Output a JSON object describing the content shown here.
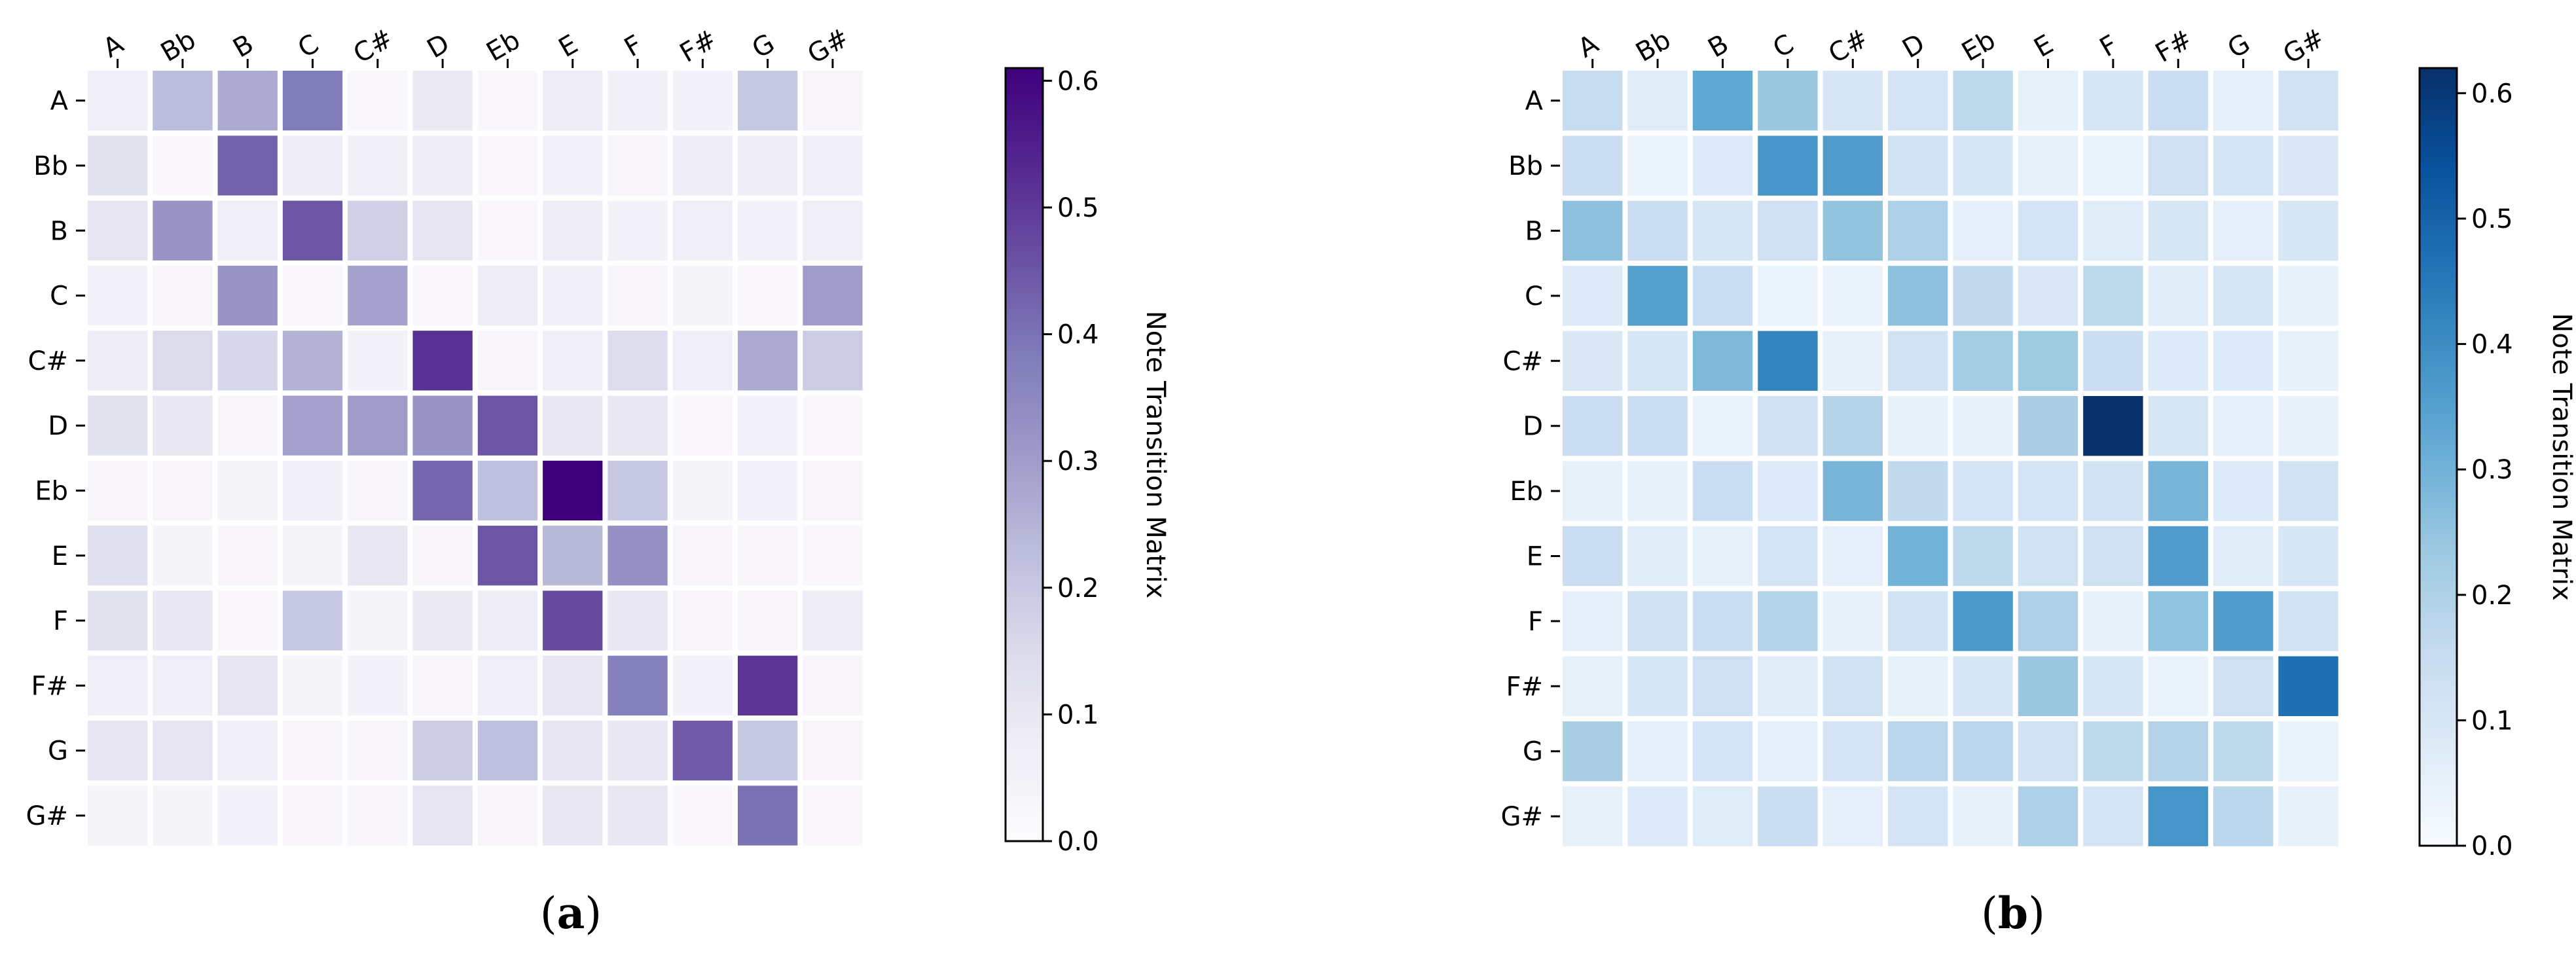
{
  "chart_data": [
    {
      "type": "heatmap",
      "panel_label": "(a)",
      "x_categories": [
        "A",
        "Bb",
        "B",
        "C",
        "C#",
        "D",
        "Eb",
        "E",
        "F",
        "F#",
        "G",
        "G#"
      ],
      "y_categories": [
        "A",
        "Bb",
        "B",
        "C",
        "C#",
        "D",
        "Eb",
        "E",
        "F",
        "F#",
        "G",
        "G#"
      ],
      "colorbar_label": "Note Transition Matrix",
      "colorbar_ticks": [
        "0.0",
        "0.1",
        "0.2",
        "0.3",
        "0.4",
        "0.5",
        "0.6"
      ],
      "vmin": 0.0,
      "vmax": 0.61,
      "colormap": "Purples",
      "colormap_stops": [
        "#fcfbfd",
        "#efedf5",
        "#dadaeb",
        "#bcbddc",
        "#9e9ac8",
        "#807dba",
        "#6a51a3",
        "#54278f",
        "#3f007d"
      ],
      "values": [
        [
          0.07,
          0.23,
          0.27,
          0.38,
          0.02,
          0.09,
          0.02,
          0.08,
          0.06,
          0.05,
          0.2,
          0.03
        ],
        [
          0.12,
          0.02,
          0.43,
          0.08,
          0.06,
          0.08,
          0.02,
          0.05,
          0.03,
          0.08,
          0.08,
          0.06
        ],
        [
          0.11,
          0.32,
          0.07,
          0.45,
          0.18,
          0.11,
          0.02,
          0.08,
          0.05,
          0.07,
          0.05,
          0.07
        ],
        [
          0.05,
          0.03,
          0.32,
          0.02,
          0.29,
          0.02,
          0.08,
          0.06,
          0.03,
          0.04,
          0.02,
          0.3
        ],
        [
          0.08,
          0.15,
          0.16,
          0.25,
          0.05,
          0.52,
          0.03,
          0.07,
          0.14,
          0.07,
          0.27,
          0.19
        ],
        [
          0.12,
          0.1,
          0.03,
          0.29,
          0.3,
          0.32,
          0.45,
          0.1,
          0.1,
          0.02,
          0.05,
          0.02
        ],
        [
          0.03,
          0.03,
          0.04,
          0.06,
          0.03,
          0.42,
          0.22,
          0.61,
          0.2,
          0.04,
          0.05,
          0.03
        ],
        [
          0.13,
          0.04,
          0.03,
          0.04,
          0.1,
          0.03,
          0.45,
          0.24,
          0.33,
          0.03,
          0.03,
          0.02
        ],
        [
          0.12,
          0.1,
          0.02,
          0.2,
          0.04,
          0.09,
          0.08,
          0.47,
          0.1,
          0.03,
          0.03,
          0.08
        ],
        [
          0.07,
          0.07,
          0.11,
          0.04,
          0.05,
          0.03,
          0.07,
          0.1,
          0.37,
          0.05,
          0.51,
          0.03
        ],
        [
          0.11,
          0.11,
          0.07,
          0.03,
          0.03,
          0.19,
          0.22,
          0.11,
          0.1,
          0.44,
          0.2,
          0.03
        ],
        [
          0.04,
          0.04,
          0.05,
          0.03,
          0.03,
          0.11,
          0.03,
          0.1,
          0.1,
          0.02,
          0.4,
          0.02
        ]
      ]
    },
    {
      "type": "heatmap",
      "panel_label": "(b)",
      "x_categories": [
        "A",
        "Bb",
        "B",
        "C",
        "C#",
        "D",
        "Eb",
        "E",
        "F",
        "F#",
        "G",
        "G#"
      ],
      "y_categories": [
        "A",
        "Bb",
        "B",
        "C",
        "C#",
        "D",
        "Eb",
        "E",
        "F",
        "F#",
        "G",
        "G#"
      ],
      "colorbar_label": "Note Transition Matrix",
      "colorbar_ticks": [
        "0.0",
        "0.1",
        "0.2",
        "0.3",
        "0.4",
        "0.5",
        "0.6"
      ],
      "vmin": 0.0,
      "vmax": 0.62,
      "colormap": "Blues",
      "colormap_stops": [
        "#f7fbff",
        "#deebf7",
        "#c6dbef",
        "#9ecae1",
        "#6baed6",
        "#4292c6",
        "#2171b5",
        "#08519c",
        "#08306b"
      ],
      "values": [
        [
          0.15,
          0.07,
          0.33,
          0.24,
          0.1,
          0.11,
          0.17,
          0.05,
          0.1,
          0.14,
          0.06,
          0.12
        ],
        [
          0.14,
          0.03,
          0.08,
          0.38,
          0.36,
          0.12,
          0.1,
          0.05,
          0.04,
          0.13,
          0.11,
          0.09
        ],
        [
          0.26,
          0.14,
          0.1,
          0.13,
          0.25,
          0.2,
          0.06,
          0.11,
          0.07,
          0.1,
          0.06,
          0.1
        ],
        [
          0.08,
          0.35,
          0.14,
          0.03,
          0.04,
          0.26,
          0.16,
          0.09,
          0.17,
          0.07,
          0.1,
          0.05
        ],
        [
          0.09,
          0.1,
          0.28,
          0.42,
          0.05,
          0.12,
          0.22,
          0.23,
          0.14,
          0.08,
          0.08,
          0.05
        ],
        [
          0.14,
          0.14,
          0.04,
          0.13,
          0.19,
          0.05,
          0.05,
          0.21,
          0.62,
          0.1,
          0.06,
          0.05
        ],
        [
          0.05,
          0.05,
          0.14,
          0.08,
          0.29,
          0.16,
          0.11,
          0.11,
          0.12,
          0.29,
          0.08,
          0.12
        ],
        [
          0.14,
          0.07,
          0.05,
          0.11,
          0.06,
          0.3,
          0.17,
          0.12,
          0.13,
          0.36,
          0.07,
          0.1
        ],
        [
          0.06,
          0.13,
          0.14,
          0.19,
          0.05,
          0.12,
          0.37,
          0.2,
          0.05,
          0.25,
          0.36,
          0.12
        ],
        [
          0.05,
          0.1,
          0.13,
          0.07,
          0.12,
          0.05,
          0.1,
          0.24,
          0.1,
          0.04,
          0.13,
          0.47
        ],
        [
          0.21,
          0.06,
          0.11,
          0.06,
          0.11,
          0.18,
          0.18,
          0.12,
          0.17,
          0.19,
          0.17,
          0.04
        ],
        [
          0.05,
          0.08,
          0.07,
          0.14,
          0.06,
          0.11,
          0.05,
          0.2,
          0.11,
          0.38,
          0.18,
          0.05
        ]
      ]
    }
  ]
}
